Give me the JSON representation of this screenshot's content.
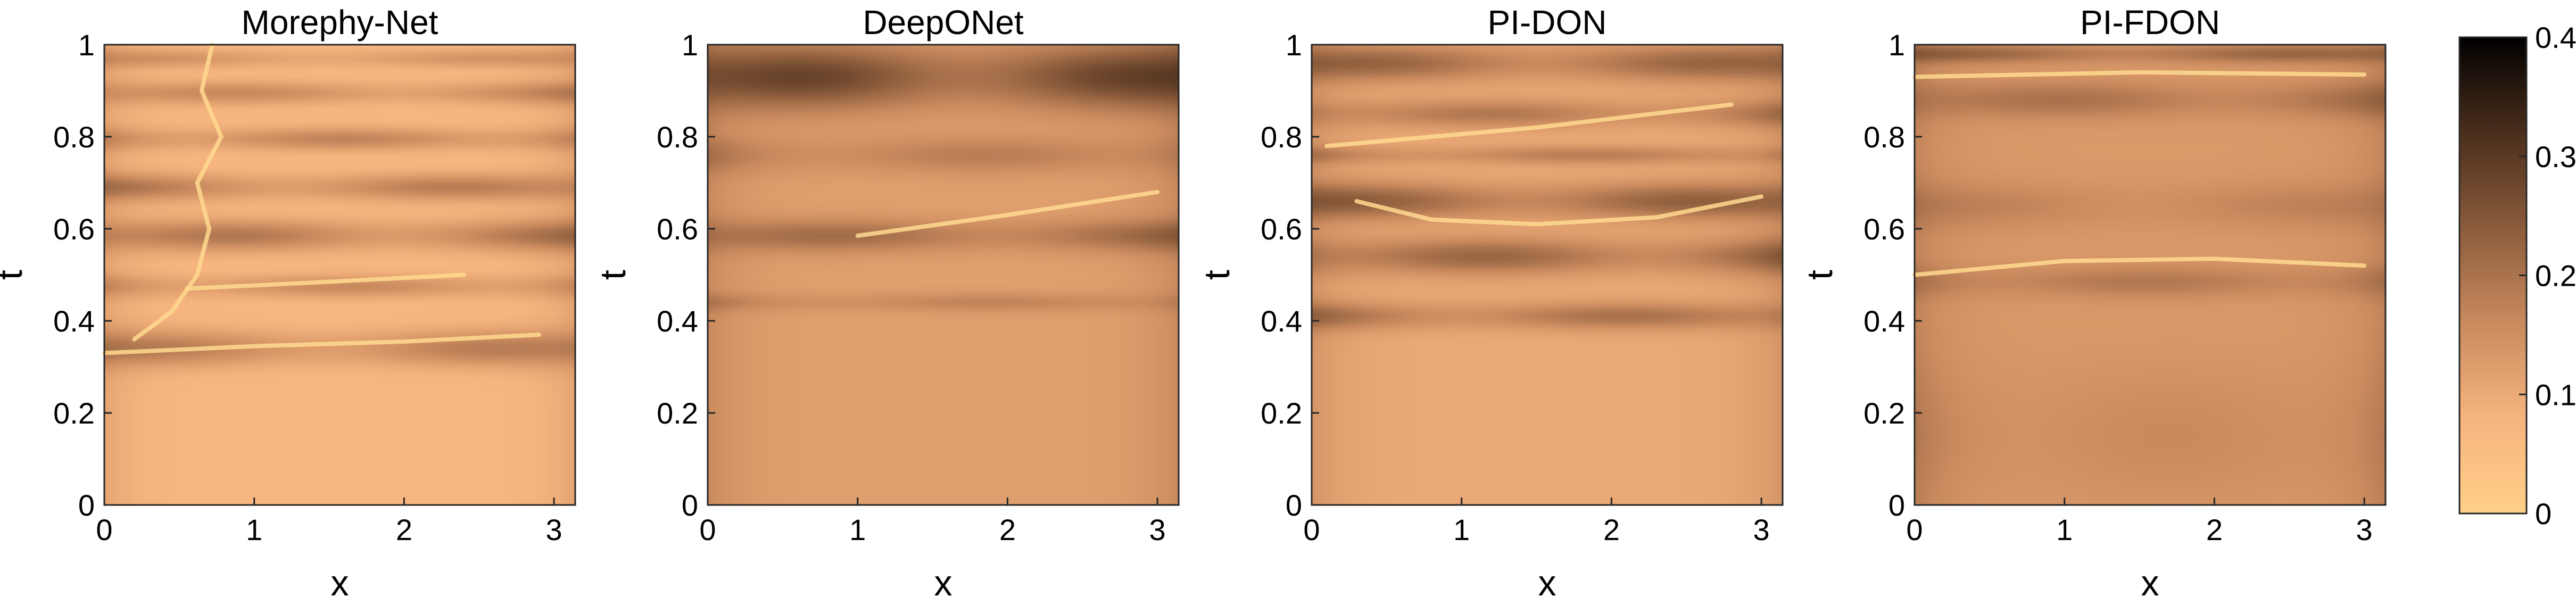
{
  "chart_data": [
    {
      "type": "heatmap",
      "title": "Morephy-Net",
      "xlabel": "x",
      "ylabel": "t",
      "xlim": [
        0,
        3.14159
      ],
      "ylim": [
        0,
        1
      ],
      "xticks": [
        "0",
        "1",
        "2",
        "3"
      ],
      "yticks": [
        "0",
        "0.2",
        "0.4",
        "0.6",
        "0.8",
        "1"
      ],
      "clim": [
        0,
        0.4
      ],
      "features": {
        "base": 0.07,
        "bands": [
          {
            "t0": 0.3,
            "t1": 0.38,
            "amp": 0.11
          },
          {
            "t0": 0.45,
            "t1": 0.5,
            "amp": 0.09
          },
          {
            "t0": 0.55,
            "t1": 0.62,
            "amp": 0.12
          },
          {
            "t0": 0.66,
            "t1": 0.72,
            "amp": 0.11
          },
          {
            "t0": 0.77,
            "t1": 0.82,
            "amp": 0.1
          },
          {
            "t0": 0.87,
            "t1": 0.92,
            "amp": 0.09
          },
          {
            "t0": 0.95,
            "t1": 0.99,
            "amp": 0.07
          }
        ],
        "curves": [
          {
            "points": [
              [
                0.0,
                0.33
              ],
              [
                1.0,
                0.345
              ],
              [
                2.0,
                0.355
              ],
              [
                2.9,
                0.37
              ]
            ]
          },
          {
            "points": [
              [
                0.55,
                0.47
              ],
              [
                1.5,
                0.485
              ],
              [
                2.4,
                0.5
              ]
            ]
          },
          {
            "points": [
              [
                0.2,
                0.36
              ],
              [
                0.45,
                0.42
              ],
              [
                0.62,
                0.5
              ],
              [
                0.7,
                0.6
              ],
              [
                0.62,
                0.7
              ],
              [
                0.78,
                0.8
              ],
              [
                0.65,
                0.9
              ],
              [
                0.72,
                1.0
              ]
            ]
          }
        ]
      }
    },
    {
      "type": "heatmap",
      "title": "DeepONet",
      "xlabel": "x",
      "ylabel": "t",
      "xlim": [
        0,
        3.14159
      ],
      "ylim": [
        0,
        1
      ],
      "xticks": [
        "0",
        "1",
        "2",
        "3"
      ],
      "yticks": [
        "0",
        "0.2",
        "0.4",
        "0.6",
        "0.8",
        "1"
      ],
      "clim": [
        0,
        0.4
      ],
      "features": {
        "base": 0.12,
        "bands": [
          {
            "t0": 0.42,
            "t1": 0.46,
            "amp": 0.05
          },
          {
            "t0": 0.55,
            "t1": 0.62,
            "amp": 0.09
          },
          {
            "t0": 0.72,
            "t1": 0.8,
            "amp": 0.06
          },
          {
            "t0": 0.86,
            "t1": 1.0,
            "amp": 0.16
          }
        ],
        "curves": [
          {
            "points": [
              [
                1.0,
                0.585
              ],
              [
                2.0,
                0.63
              ],
              [
                3.0,
                0.68
              ]
            ]
          }
        ]
      }
    },
    {
      "type": "heatmap",
      "title": "PI-DON",
      "xlabel": "x",
      "ylabel": "t",
      "xlim": [
        0,
        3.14159
      ],
      "ylim": [
        0,
        1
      ],
      "xticks": [
        "0",
        "1",
        "2",
        "3"
      ],
      "yticks": [
        "0",
        "0.2",
        "0.4",
        "0.6",
        "0.8",
        "1"
      ],
      "clim": [
        0,
        0.4
      ],
      "features": {
        "base": 0.1,
        "bands": [
          {
            "t0": 0.38,
            "t1": 0.44,
            "amp": 0.1
          },
          {
            "t0": 0.5,
            "t1": 0.58,
            "amp": 0.12
          },
          {
            "t0": 0.62,
            "t1": 0.7,
            "amp": 0.13
          },
          {
            "t0": 0.74,
            "t1": 0.78,
            "amp": 0.08
          },
          {
            "t0": 0.82,
            "t1": 0.88,
            "amp": 0.09
          },
          {
            "t0": 0.92,
            "t1": 1.0,
            "amp": 0.12
          }
        ],
        "curves": [
          {
            "points": [
              [
                0.1,
                0.78
              ],
              [
                1.5,
                0.82
              ],
              [
                2.8,
                0.87
              ]
            ]
          },
          {
            "points": [
              [
                0.3,
                0.66
              ],
              [
                0.8,
                0.62
              ],
              [
                1.5,
                0.61
              ],
              [
                2.3,
                0.625
              ],
              [
                3.0,
                0.67
              ]
            ]
          }
        ]
      }
    },
    {
      "type": "heatmap",
      "title": "PI-FDON",
      "xlabel": "x",
      "ylabel": "t",
      "xlim": [
        0,
        3.14159
      ],
      "ylim": [
        0,
        1
      ],
      "xticks": [
        "0",
        "1",
        "2",
        "3"
      ],
      "yticks": [
        "0",
        "0.2",
        "0.4",
        "0.6",
        "0.8",
        "1"
      ],
      "clim": [
        0,
        0.4
      ],
      "features": {
        "base": 0.13,
        "bands": [
          {
            "t0": 0.0,
            "t1": 0.3,
            "amp": 0.03
          },
          {
            "t0": 0.45,
            "t1": 0.52,
            "amp": 0.06
          },
          {
            "t0": 0.6,
            "t1": 0.7,
            "amp": 0.04
          },
          {
            "t0": 0.84,
            "t1": 0.92,
            "amp": 0.07
          },
          {
            "t0": 0.96,
            "t1": 1.0,
            "amp": 0.09
          }
        ],
        "curves": [
          {
            "points": [
              [
                0.0,
                0.5
              ],
              [
                1.0,
                0.53
              ],
              [
                2.0,
                0.535
              ],
              [
                3.0,
                0.52
              ]
            ]
          },
          {
            "points": [
              [
                0.0,
                0.93
              ],
              [
                1.5,
                0.94
              ],
              [
                3.0,
                0.935
              ]
            ]
          }
        ]
      }
    }
  ],
  "colorbar": {
    "min": 0,
    "max": 0.4,
    "ticks": [
      "0",
      "0.1",
      "0.2",
      "0.3",
      "0.4"
    ],
    "colormap": "copper-reversed",
    "colors": [
      "#ffd089",
      "#f6b47e",
      "#c98a5e",
      "#8a5b3b",
      "#4a2e1c",
      "#000000"
    ]
  }
}
